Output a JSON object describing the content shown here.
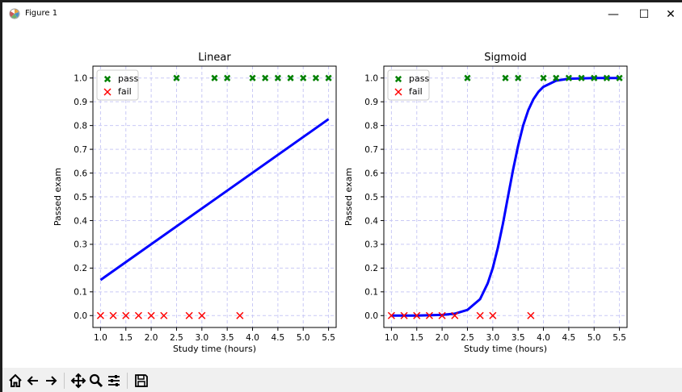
{
  "window": {
    "title": "Figure 1",
    "buttons": {
      "minimize": "—",
      "maximize": "☐",
      "close": "✕"
    }
  },
  "toolbar": {
    "items": [
      "home-icon",
      "back-icon",
      "forward-icon",
      "pan-icon",
      "zoom-icon",
      "configure-subplots-icon",
      "save-icon"
    ]
  },
  "chart_data": [
    {
      "type": "scatter",
      "title": "Linear",
      "xlabel": "Study time (hours)",
      "ylabel": "Passed exam",
      "xlim": [
        0.85,
        5.65
      ],
      "ylim": [
        -0.05,
        1.05
      ],
      "xticks": [
        1.0,
        1.5,
        2.0,
        2.5,
        3.0,
        3.5,
        4.0,
        4.5,
        5.0,
        5.5
      ],
      "xtick_labels": [
        "1.0",
        "1.5",
        "2.0",
        "2.5",
        "3.0",
        "3.5",
        "4.0",
        "4.5",
        "5.0",
        "5.5"
      ],
      "yticks": [
        0.0,
        0.1,
        0.2,
        0.3,
        0.4,
        0.5,
        0.6,
        0.7,
        0.8,
        0.9,
        1.0
      ],
      "ytick_labels": [
        "0.0",
        "0.1",
        "0.2",
        "0.3",
        "0.4",
        "0.5",
        "0.6",
        "0.7",
        "0.8",
        "0.9",
        "1.0"
      ],
      "grid": true,
      "legend": "top-left",
      "series": [
        {
          "name": "pass",
          "marker": "X",
          "color": "#008000",
          "x": [
            2.5,
            3.25,
            3.5,
            4.0,
            4.25,
            4.5,
            4.75,
            5.0,
            5.25,
            5.5
          ],
          "y": [
            1,
            1,
            1,
            1,
            1,
            1,
            1,
            1,
            1,
            1
          ]
        },
        {
          "name": "fail",
          "marker": "x",
          "color": "#ff0000",
          "x": [
            1.0,
            1.25,
            1.5,
            1.75,
            2.0,
            2.25,
            2.75,
            3.0,
            3.75
          ],
          "y": [
            0,
            0,
            0,
            0,
            0,
            0,
            0,
            0,
            0
          ]
        }
      ],
      "fit": {
        "kind": "linear",
        "color": "#0000ff",
        "x": [
          1.0,
          5.5
        ],
        "y": [
          0.15,
          0.827
        ]
      }
    },
    {
      "type": "scatter",
      "title": "Sigmoid",
      "xlabel": "Study time (hours)",
      "ylabel": "Passed exam",
      "xlim": [
        0.85,
        5.65
      ],
      "ylim": [
        -0.05,
        1.05
      ],
      "xticks": [
        1.0,
        1.5,
        2.0,
        2.5,
        3.0,
        3.5,
        4.0,
        4.5,
        5.0,
        5.5
      ],
      "xtick_labels": [
        "1.0",
        "1.5",
        "2.0",
        "2.5",
        "3.0",
        "3.5",
        "4.0",
        "4.5",
        "5.0",
        "5.5"
      ],
      "yticks": [
        0.0,
        0.1,
        0.2,
        0.3,
        0.4,
        0.5,
        0.6,
        0.7,
        0.8,
        0.9,
        1.0
      ],
      "ytick_labels": [
        "0.0",
        "0.1",
        "0.2",
        "0.3",
        "0.4",
        "0.5",
        "0.6",
        "0.7",
        "0.8",
        "0.9",
        "1.0"
      ],
      "grid": true,
      "legend": "top-left",
      "series": [
        {
          "name": "pass",
          "marker": "X",
          "color": "#008000",
          "x": [
            2.5,
            3.25,
            3.5,
            4.0,
            4.25,
            4.5,
            4.75,
            5.0,
            5.25,
            5.5
          ],
          "y": [
            1,
            1,
            1,
            1,
            1,
            1,
            1,
            1,
            1,
            1
          ]
        },
        {
          "name": "fail",
          "marker": "x",
          "color": "#ff0000",
          "x": [
            1.0,
            1.25,
            1.5,
            1.75,
            2.0,
            2.25,
            2.75,
            3.0,
            3.75
          ],
          "y": [
            0,
            0,
            0,
            0,
            0,
            0,
            0,
            0,
            0
          ]
        }
      ],
      "fit": {
        "kind": "sigmoid",
        "color": "#0000ff",
        "x": [
          1.0,
          1.5,
          2.0,
          2.25,
          2.5,
          2.75,
          2.9,
          3.0,
          3.1,
          3.2,
          3.3,
          3.4,
          3.5,
          3.6,
          3.7,
          3.8,
          3.9,
          4.0,
          4.25,
          4.5,
          5.0,
          5.5
        ],
        "y": [
          0.0,
          0.0,
          0.003,
          0.008,
          0.024,
          0.069,
          0.136,
          0.2,
          0.285,
          0.387,
          0.5,
          0.613,
          0.715,
          0.8,
          0.864,
          0.91,
          0.942,
          0.963,
          0.989,
          0.997,
          1.0,
          1.0
        ]
      }
    }
  ]
}
